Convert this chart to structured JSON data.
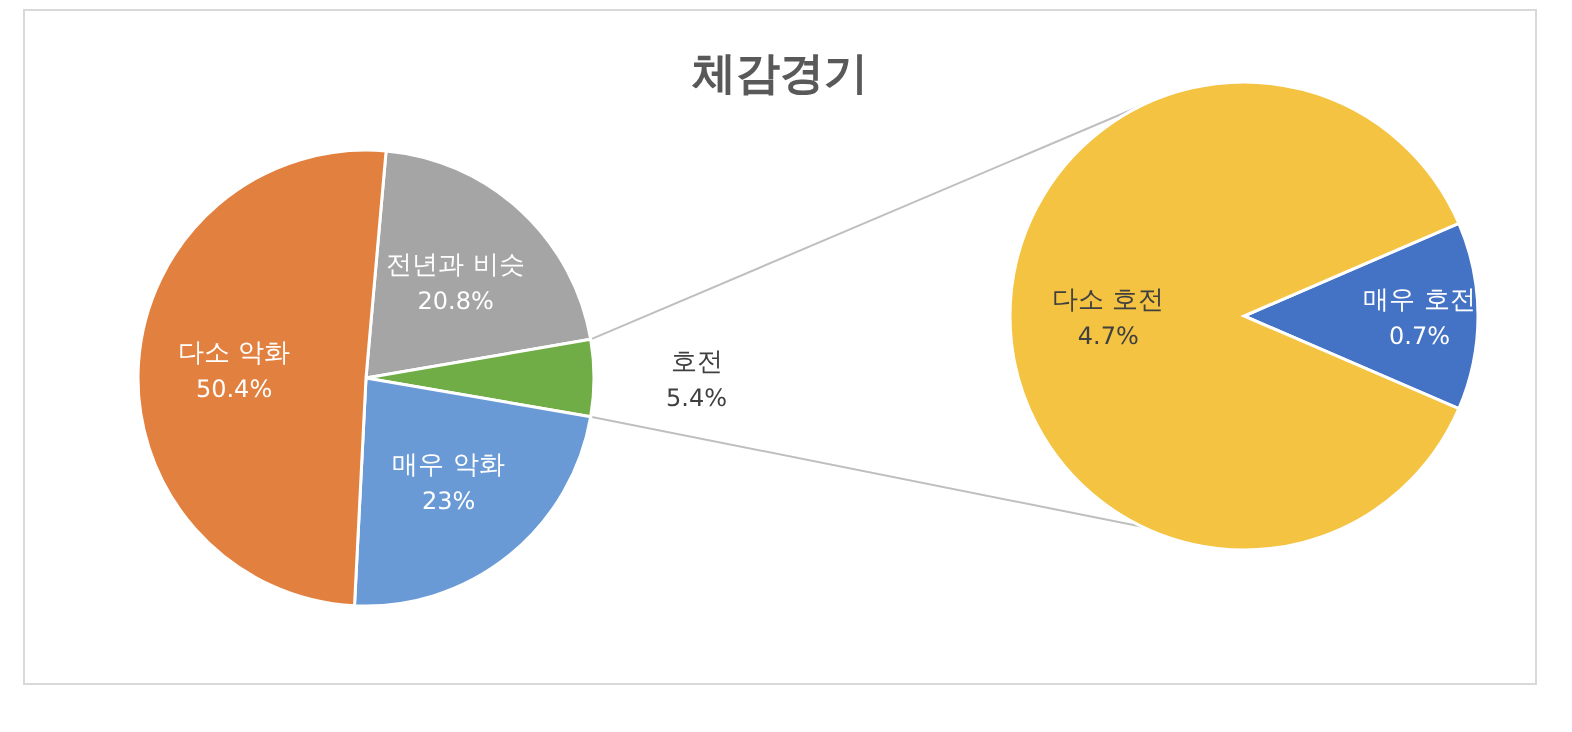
{
  "chart_data": [
    {
      "type": "pie",
      "title": "체감경기",
      "categories": [
        "전년과 비슷",
        "호전",
        "매우 악화",
        "다소 악화"
      ],
      "values": [
        20.8,
        5.4,
        23,
        50.4
      ],
      "colors": [
        "#a5a5a5",
        "#70ad47",
        "#6a9ad6",
        "#e2813f"
      ],
      "value_labels": [
        "20.8%",
        "5.4%",
        "23%",
        "50.4%"
      ]
    },
    {
      "type": "pie",
      "categories": [
        "매우 호전",
        "다소 호전"
      ],
      "values": [
        0.7,
        4.7
      ],
      "colors": [
        "#4472c4",
        "#f4c341"
      ],
      "value_labels": [
        "0.7%",
        "4.7%"
      ]
    }
  ]
}
